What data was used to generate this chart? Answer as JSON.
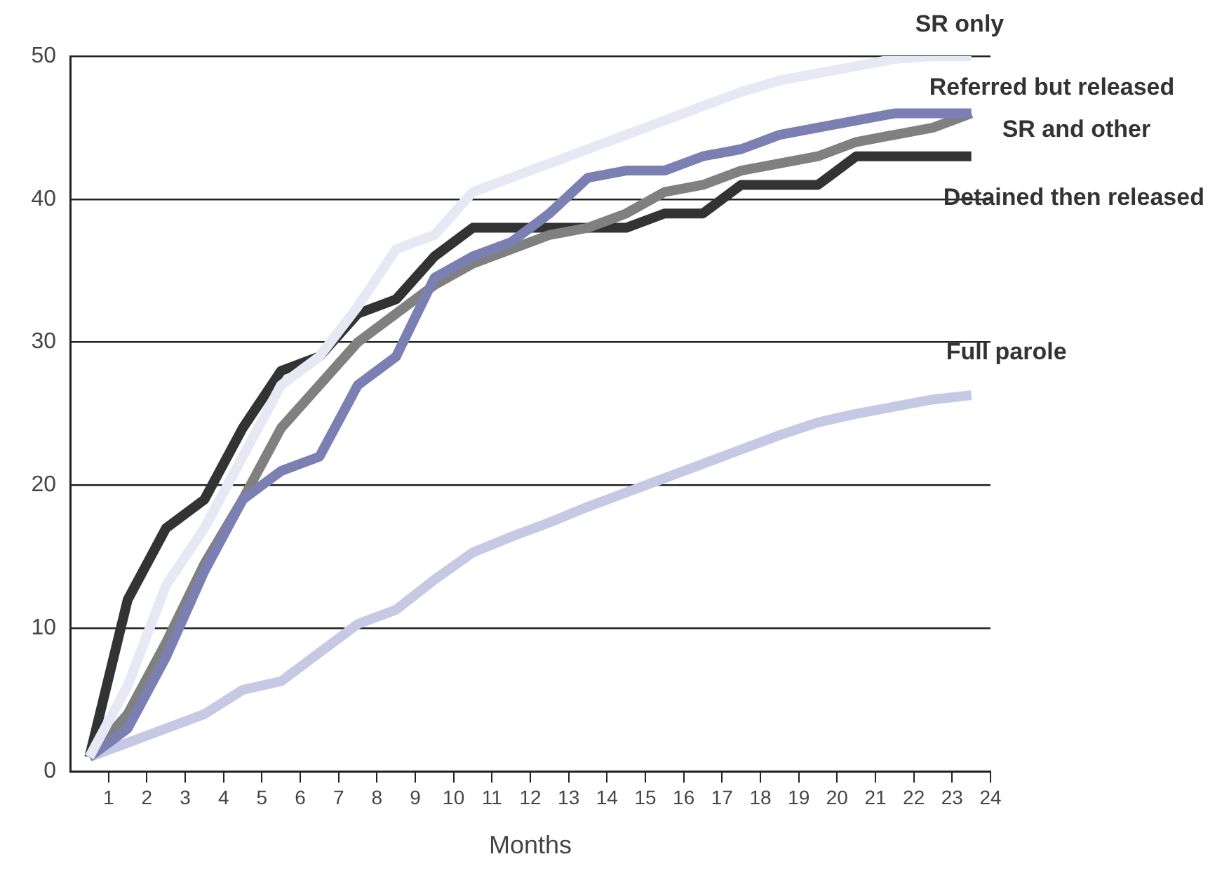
{
  "chart_data": {
    "type": "line",
    "xlabel": "Months",
    "xlim": [
      0,
      24
    ],
    "xticks": [
      1,
      2,
      3,
      4,
      5,
      6,
      7,
      8,
      9,
      10,
      11,
      12,
      13,
      14,
      15,
      16,
      17,
      18,
      19,
      20,
      21,
      22,
      23,
      24
    ],
    "ylim": [
      0,
      50
    ],
    "yticks": [
      0,
      10,
      20,
      30,
      40,
      50
    ],
    "grid": "y",
    "legend": false,
    "marker": "none",
    "line_style": "solid",
    "x": [
      0.5,
      1.5,
      2.5,
      3.5,
      4.5,
      5.5,
      6.5,
      7.5,
      8.5,
      9.5,
      10.5,
      11.5,
      12.5,
      13.5,
      14.5,
      15.5,
      16.5,
      17.5,
      18.5,
      19.5,
      20.5,
      21.5,
      22.5,
      23.5
    ],
    "series": [
      {
        "name": "SR only",
        "color": "#e6e9f4",
        "values": [
          1,
          6,
          13,
          17,
          22,
          27,
          29,
          32.5,
          36.5,
          37.5,
          40.5,
          41.5,
          42.5,
          43.5,
          44.5,
          45.5,
          46.5,
          47.5,
          48.3,
          48.8,
          49.3,
          49.8,
          50,
          50
        ]
      },
      {
        "name": "Referred but released",
        "color": "#7b80b2",
        "values": [
          1,
          3,
          8,
          14,
          19,
          21,
          22,
          27,
          29,
          34.5,
          36,
          37,
          39,
          41.5,
          42,
          42,
          43,
          43.5,
          44.5,
          45,
          45.5,
          46,
          46,
          46
        ]
      },
      {
        "name": "SR and other",
        "color": "#808080",
        "values": [
          1,
          4,
          9,
          14.5,
          19,
          24,
          27,
          30,
          32,
          34,
          35.5,
          36.5,
          37.5,
          38,
          39,
          40.5,
          41,
          42,
          42.5,
          43,
          44,
          44.5,
          45,
          46
        ]
      },
      {
        "name": "Detained then released",
        "color": "#333333",
        "values": [
          1,
          12,
          17,
          19,
          24,
          28,
          29,
          32,
          33,
          36,
          38,
          38,
          38,
          38,
          38,
          39,
          39,
          41,
          41,
          41,
          43,
          43,
          43,
          43
        ]
      },
      {
        "name": "Full parole",
        "color": "#c6c9e4",
        "values": [
          1,
          2,
          3,
          4,
          5.7,
          6.3,
          8.3,
          10.3,
          11.3,
          13.4,
          15.3,
          16.4,
          17.4,
          18.5,
          19.5,
          20.5,
          21.5,
          22.5,
          23.5,
          24.4,
          25,
          25.5,
          26,
          26.3
        ]
      }
    ]
  }
}
